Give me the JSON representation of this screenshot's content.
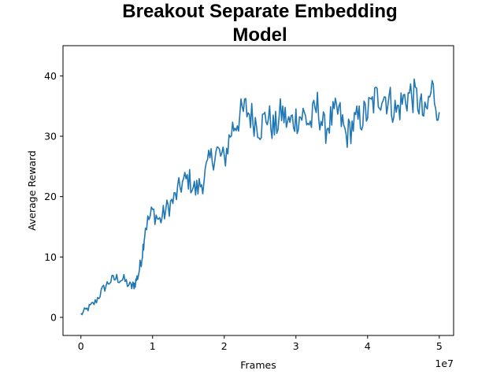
{
  "chart_data": {
    "type": "line",
    "title_lines": [
      "Breakout Separate Embedding",
      "Model"
    ],
    "xlabel": "Frames",
    "ylabel": "Average Reward",
    "x_offset_label": "1e7",
    "xlim": [
      -2500000.0,
      52000000.0
    ],
    "ylim": [
      -3,
      45
    ],
    "xticks": [
      0,
      10000000,
      20000000,
      30000000,
      40000000,
      50000000
    ],
    "xtick_labels": [
      "0",
      "1",
      "2",
      "3",
      "4",
      "5"
    ],
    "yticks": [
      0,
      10,
      20,
      30,
      40
    ],
    "ytick_labels": [
      "0",
      "10",
      "20",
      "30",
      "40"
    ],
    "grid": false,
    "series": [
      {
        "color": "#1f77b4",
        "x": [
          0,
          1000000,
          2000000,
          3000000,
          4000000,
          5000000,
          6000000,
          7000000,
          7500000,
          8000000,
          8500000,
          9000000,
          10000000,
          11000000,
          12000000,
          13000000,
          14000000,
          15000000,
          16000000,
          17000000,
          18000000,
          19000000,
          20000000,
          21000000,
          22000000,
          23000000,
          24000000,
          25000000,
          26000000,
          27000000,
          28000000,
          29000000,
          30000000,
          31000000,
          32000000,
          33000000,
          34000000,
          35000000,
          36000000,
          37000000,
          38000000,
          39000000,
          40000000,
          41000000,
          42000000,
          43000000,
          44000000,
          45000000,
          46000000,
          47000000,
          48000000,
          49000000,
          50000000
        ],
        "y": [
          0.5,
          1.5,
          2.5,
          4.5,
          6,
          6.5,
          6.2,
          5,
          5.5,
          7,
          10,
          15,
          17.5,
          16,
          18,
          19.5,
          22,
          23,
          21,
          22.5,
          26,
          27.5,
          26,
          31,
          33,
          34.5,
          33,
          31.5,
          33.5,
          31,
          34,
          32,
          33,
          33.5,
          32,
          35,
          31,
          33,
          34,
          30,
          32,
          33,
          34,
          36,
          37,
          36,
          34,
          36,
          37,
          36,
          33,
          38,
          34
        ]
      }
    ]
  }
}
